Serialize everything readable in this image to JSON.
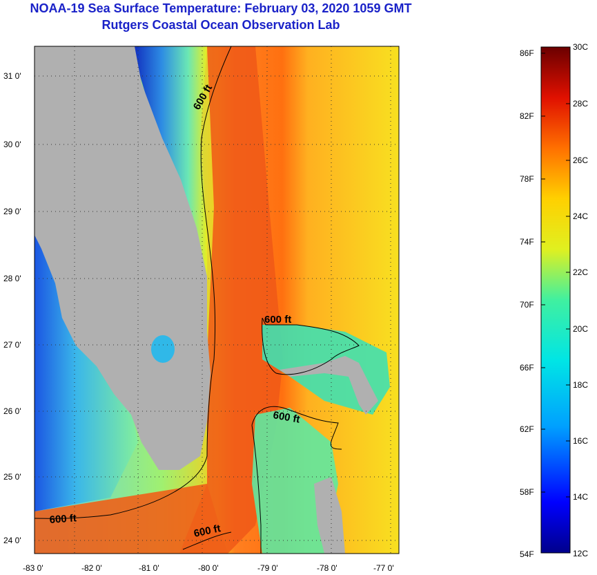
{
  "header": {
    "title": "NOAA-19 Sea Surface Temperature:  February 03, 2020 1059 GMT",
    "subtitle": "Rutgers Coastal Ocean Observation Lab"
  },
  "axes": {
    "lat_labels": [
      "31 0'",
      "30 0'",
      "29 0'",
      "28 0'",
      "27 0'",
      "26 0'",
      "25 0'",
      "24 0'"
    ],
    "lon_labels": [
      "-83 0'",
      "-82 0'",
      "-81 0'",
      "-80 0'",
      "-79 0'",
      "-78 0'",
      "-77 0'"
    ]
  },
  "contours": {
    "label": "600 ft"
  },
  "colorbar": {
    "fahrenheit": [
      "86F",
      "82F",
      "78F",
      "74F",
      "70F",
      "66F",
      "62F",
      "58F",
      "54F"
    ],
    "celsius": [
      "30C",
      "28C",
      "26C",
      "24C",
      "22C",
      "20C",
      "18C",
      "16C",
      "14C",
      "12C"
    ]
  },
  "colors": {
    "title": "#1a22c8",
    "land": "#b0b0b0",
    "contour": "#000000"
  }
}
